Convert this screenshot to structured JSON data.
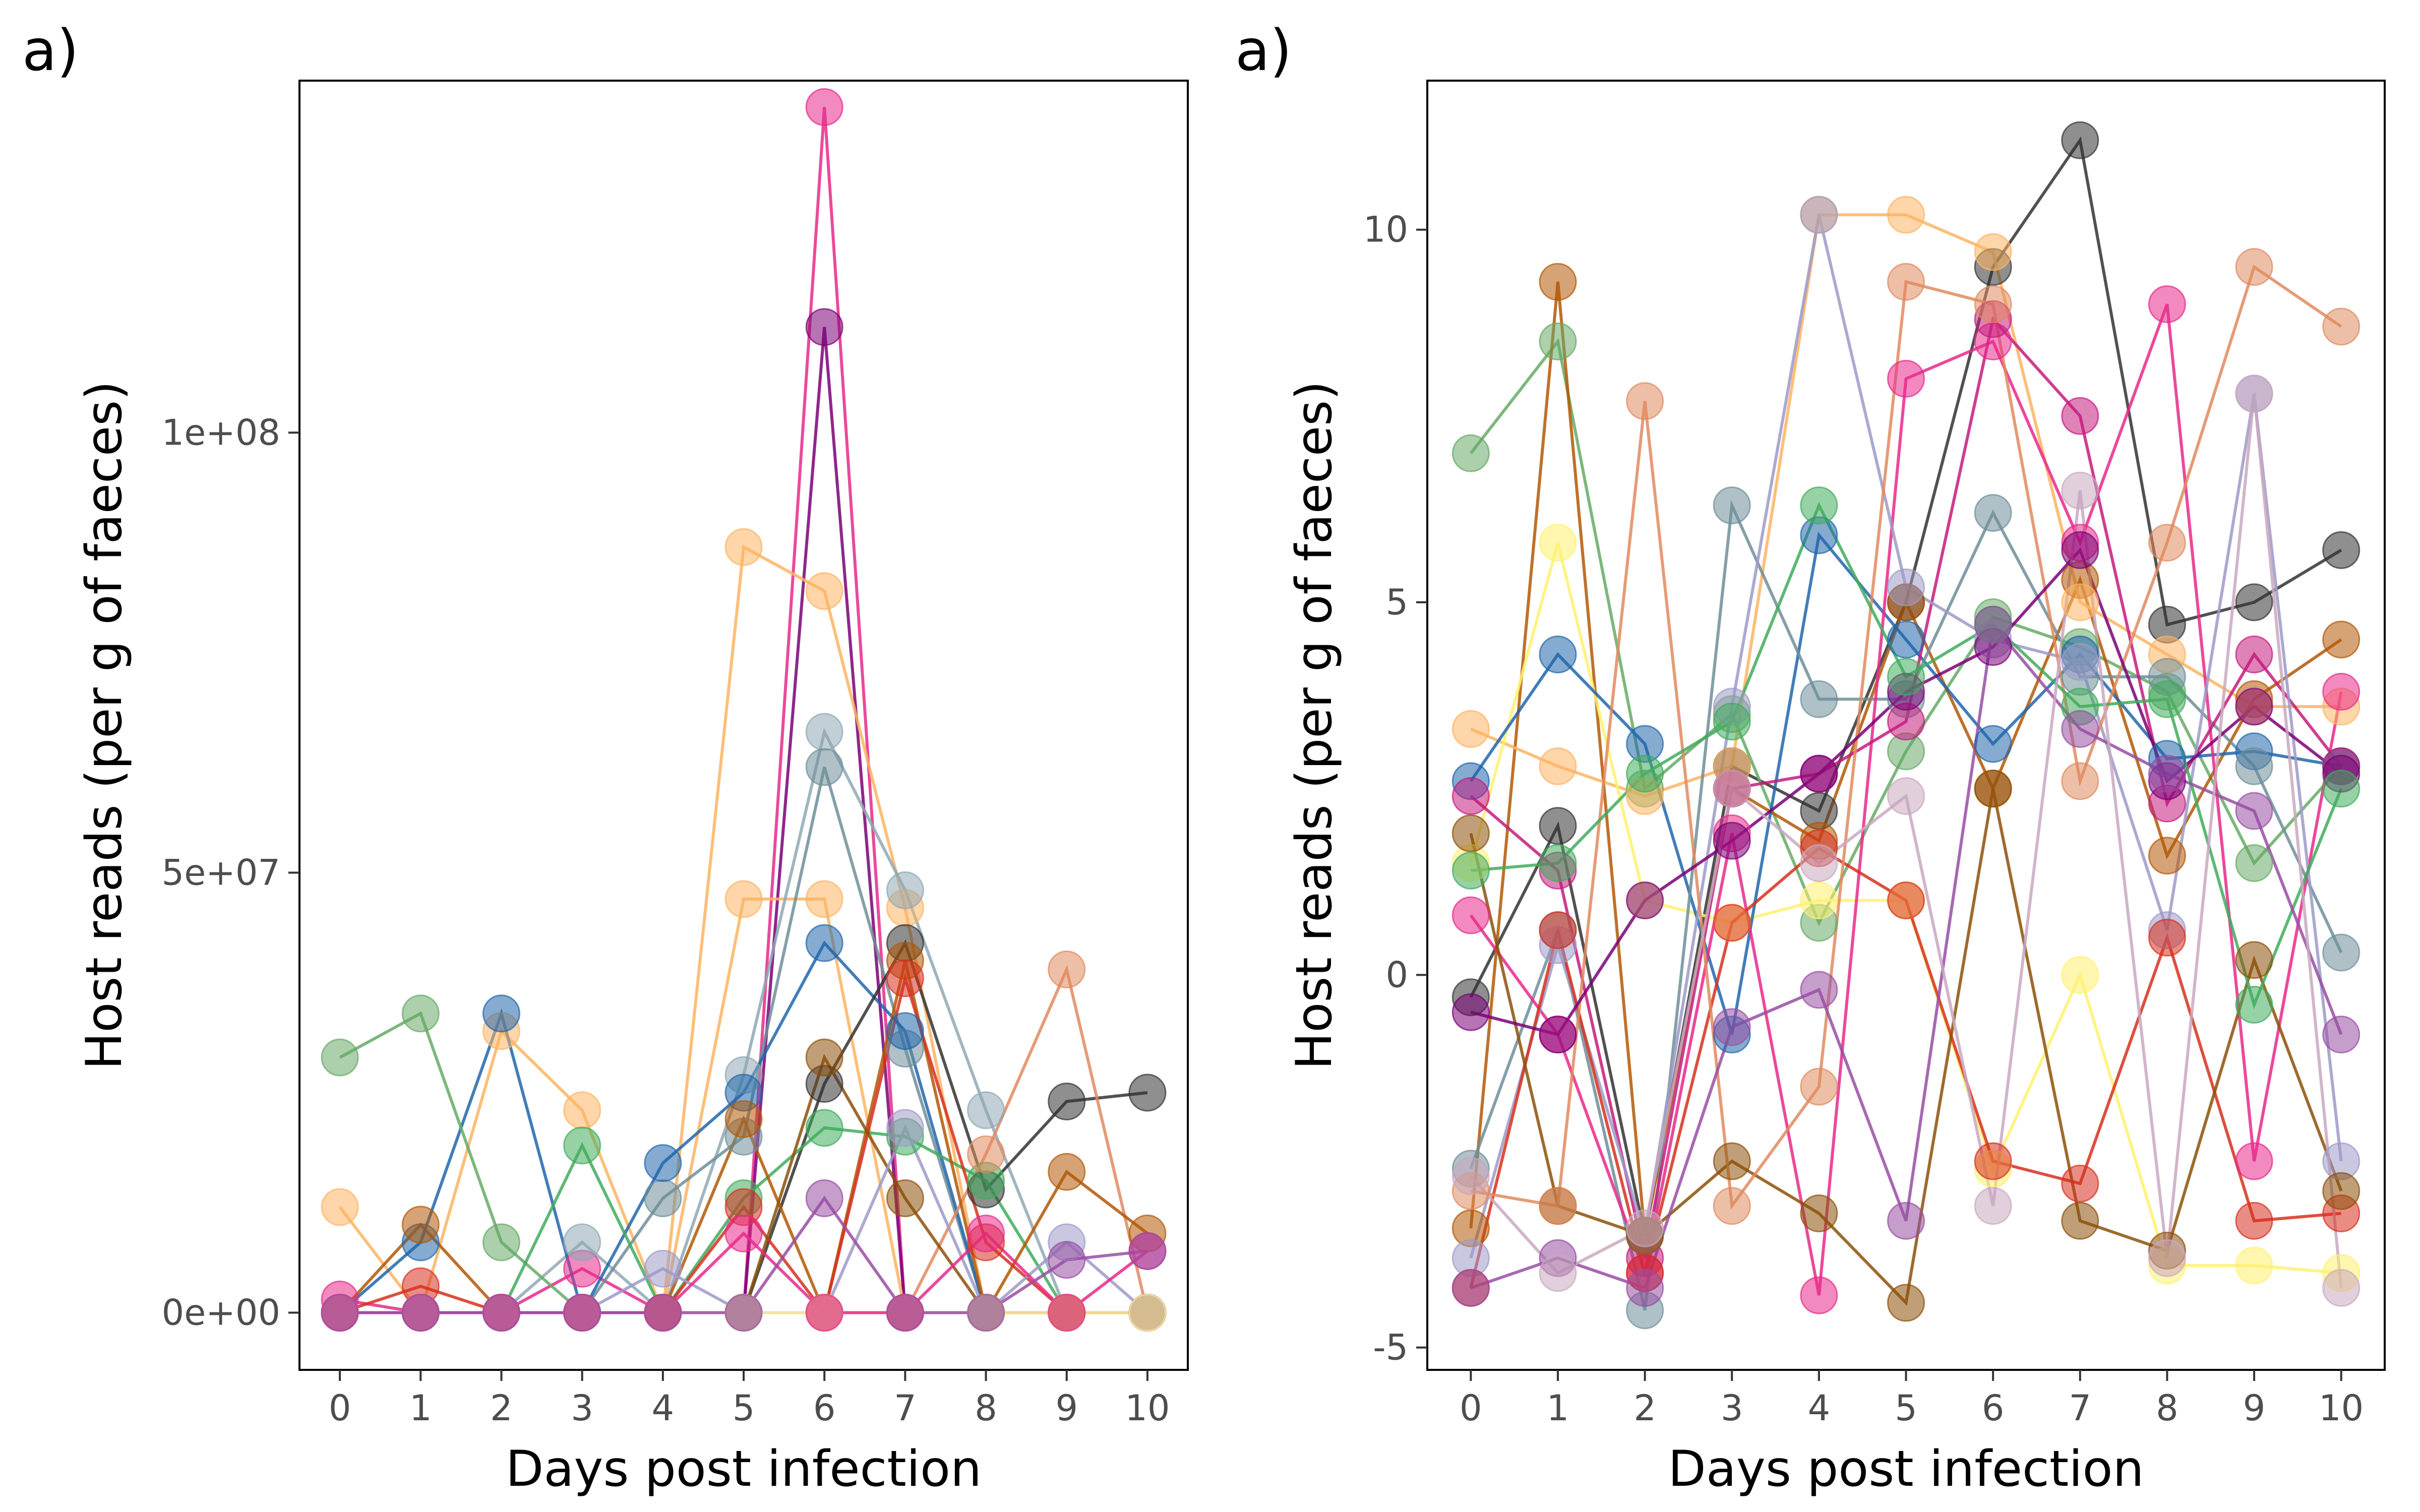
{
  "chart_data": [
    {
      "type": "line",
      "panel_label": "a)",
      "xlabel": "Days post infection",
      "ylabel": "Host reads (per g of faeces)",
      "x": [
        0,
        1,
        2,
        3,
        4,
        5,
        6,
        7,
        8,
        9,
        10
      ],
      "xlim": [
        -0.5,
        10.5
      ],
      "ylim": [
        -6500000,
        140000000
      ],
      "yticks": [
        0,
        50000000,
        100000000
      ],
      "ytick_labels": [
        "0e+00",
        "5e+07",
        "1e+08"
      ],
      "grid": false,
      "legend": "none",
      "series": [
        {
          "color": "#e7298a",
          "values": [
            1500000,
            0,
            0,
            5000000,
            0,
            0,
            137000000,
            0,
            0,
            0,
            0
          ]
        },
        {
          "color": "#7a0177",
          "values": [
            0,
            0,
            0,
            0,
            0,
            0,
            112000000,
            0,
            0,
            0,
            0
          ]
        },
        {
          "color": "#fdb462",
          "values": [
            0,
            0,
            0,
            0,
            0,
            87000000,
            82000000,
            46000000,
            0,
            0,
            0
          ]
        },
        {
          "color": "#fdb462",
          "values": [
            12000000,
            0,
            32000000,
            23000000,
            0,
            47000000,
            47000000,
            0,
            0,
            0,
            0
          ]
        },
        {
          "color": "#8fa8b4",
          "values": [
            0,
            0,
            0,
            8000000,
            0,
            27000000,
            66000000,
            48000000,
            23000000,
            0,
            0
          ]
        },
        {
          "color": "#6e8e99",
          "values": [
            0,
            0,
            0,
            0,
            13000000,
            20000000,
            62000000,
            30000000,
            0,
            0,
            0
          ]
        },
        {
          "color": "#2166ac",
          "values": [
            0,
            8000000,
            34000000,
            0,
            17000000,
            25000000,
            42000000,
            32000000,
            0,
            0,
            0
          ]
        },
        {
          "color": "#333333",
          "values": [
            0,
            0,
            0,
            0,
            0,
            0,
            26000000,
            42000000,
            14000000,
            24000000,
            25000000
          ]
        },
        {
          "color": "#66aa66",
          "values": [
            29000000,
            34000000,
            8000000,
            0,
            0,
            0,
            0,
            0,
            0,
            0,
            0
          ]
        },
        {
          "color": "#41ab5d",
          "values": [
            0,
            0,
            0,
            19000000,
            0,
            13000000,
            21000000,
            20000000,
            15000000,
            0,
            0
          ]
        },
        {
          "color": "#e08a5f",
          "values": [
            0,
            0,
            0,
            0,
            0,
            0,
            0,
            0,
            18000000,
            39000000,
            0
          ]
        },
        {
          "color": "#b35806",
          "values": [
            0,
            10000000,
            0,
            0,
            0,
            22000000,
            0,
            40000000,
            0,
            16000000,
            9000000
          ]
        },
        {
          "color": "#d7301f",
          "values": [
            0,
            3000000,
            0,
            0,
            0,
            12000000,
            0,
            38000000,
            8000000,
            0,
            0
          ]
        },
        {
          "color": "#8c510a",
          "values": [
            0,
            0,
            0,
            0,
            0,
            0,
            29000000,
            13000000,
            0,
            0,
            0
          ]
        },
        {
          "color": "#9e9ac8",
          "values": [
            0,
            0,
            0,
            0,
            5000000,
            0,
            0,
            21000000,
            0,
            8000000,
            0
          ]
        },
        {
          "color": "#fff0a0",
          "values": [
            0,
            0,
            0,
            0,
            0,
            0,
            0,
            0,
            0,
            0,
            0
          ]
        },
        {
          "color": "#e7298a",
          "values": [
            0,
            0,
            0,
            0,
            0,
            9000000,
            0,
            0,
            9000000,
            0,
            7000000
          ]
        },
        {
          "color": "#984ea3",
          "values": [
            0,
            0,
            0,
            0,
            0,
            0,
            13000000,
            0,
            0,
            6000000,
            7000000
          ]
        }
      ]
    },
    {
      "type": "line",
      "panel_label": "a)",
      "xlabel": "Days post infection",
      "ylabel": "Host reads (per g of faeces)",
      "x": [
        0,
        1,
        2,
        3,
        4,
        5,
        6,
        7,
        8,
        9,
        10
      ],
      "xlim": [
        -0.5,
        10.5
      ],
      "ylim": [
        -5.3,
        12
      ],
      "yticks": [
        -5,
        0,
        5,
        10
      ],
      "ytick_labels": [
        "-5",
        "0",
        "5",
        "10"
      ],
      "grid": false,
      "legend": "none",
      "series": [
        {
          "color": "#333333",
          "values": [
            -0.3,
            2.0,
            -3.5,
            2.8,
            2.2,
            5.0,
            9.5,
            11.2,
            4.7,
            5.0,
            5.7
          ]
        },
        {
          "color": "#66aa66",
          "values": [
            7.0,
            8.5,
            2.5,
            3.5,
            0.7,
            3.0,
            4.8,
            4.4,
            3.8,
            1.5,
            2.8
          ]
        },
        {
          "color": "#b35806",
          "values": [
            -3.4,
            9.3,
            -3.5,
            2.5,
            1.8,
            5.0,
            2.5,
            5.3,
            1.6,
            3.7,
            4.5
          ]
        },
        {
          "color": "#fdb462",
          "values": [
            3.3,
            2.8,
            2.4,
            2.8,
            10.2,
            10.2,
            9.7,
            5.0,
            4.3,
            3.6,
            3.6
          ]
        },
        {
          "color": "#fff170",
          "values": [
            1.5,
            5.8,
            1.0,
            0.7,
            1.0,
            1.0,
            -2.6,
            0.0,
            -3.9,
            -3.9,
            -4.0
          ]
        },
        {
          "color": "#2166ac",
          "values": [
            2.6,
            4.3,
            3.1,
            -0.8,
            5.9,
            4.5,
            3.1,
            4.3,
            2.9,
            3.0,
            2.8
          ]
        },
        {
          "color": "#6e8e99",
          "values": [
            -2.6,
            0.6,
            -4.5,
            6.3,
            3.7,
            3.7,
            6.2,
            4.0,
            4.0,
            2.8,
            0.3
          ]
        },
        {
          "color": "#e7298a",
          "values": [
            0.8,
            -0.8,
            -4.0,
            1.9,
            -4.3,
            8.0,
            8.5,
            5.8,
            9.0,
            -2.5,
            3.8
          ]
        },
        {
          "color": "#c51b7d",
          "values": [
            2.4,
            1.4,
            -3.8,
            2.5,
            2.7,
            3.4,
            8.8,
            7.5,
            2.3,
            4.3,
            2.8
          ]
        },
        {
          "color": "#9e9ac8",
          "values": [
            -3.8,
            0.4,
            -3.5,
            3.6,
            10.2,
            5.2,
            4.5,
            4.2,
            0.6,
            7.8,
            -2.5
          ]
        },
        {
          "color": "#d7301f",
          "values": [
            -4.2,
            0.6,
            -4.0,
            0.7,
            1.7,
            1.0,
            -2.5,
            -2.8,
            0.5,
            -3.3,
            -3.2
          ]
        },
        {
          "color": "#8c510a",
          "values": [
            1.9,
            -3.1,
            -3.5,
            -2.5,
            -3.2,
            -4.4,
            2.5,
            -3.3,
            -3.7,
            0.2,
            -2.9
          ]
        },
        {
          "color": "#e08a5f",
          "values": [
            -2.9,
            -3.1,
            7.7,
            -3.1,
            -1.5,
            9.3,
            9.0,
            2.6,
            5.8,
            9.5,
            8.7
          ]
        },
        {
          "color": "#7a0177",
          "values": [
            -0.5,
            -0.8,
            1.0,
            1.8,
            2.7,
            3.8,
            4.4,
            5.7,
            2.6,
            3.6,
            2.7
          ]
        },
        {
          "color": "#41ab5d",
          "values": [
            1.4,
            1.5,
            2.7,
            3.4,
            6.3,
            4.0,
            4.7,
            3.6,
            3.7,
            -0.4,
            2.5
          ]
        },
        {
          "color": "#984ea3",
          "values": [
            -4.2,
            -3.8,
            -4.2,
            -0.7,
            -0.2,
            -3.3,
            4.7,
            3.3,
            2.7,
            2.2,
            -0.8
          ]
        },
        {
          "color": "#c9a8bf",
          "values": [
            -2.7,
            -4.0,
            -3.4,
            2.5,
            1.5,
            2.4,
            -3.1,
            6.5,
            -3.8,
            7.8,
            -4.2
          ]
        }
      ]
    }
  ]
}
